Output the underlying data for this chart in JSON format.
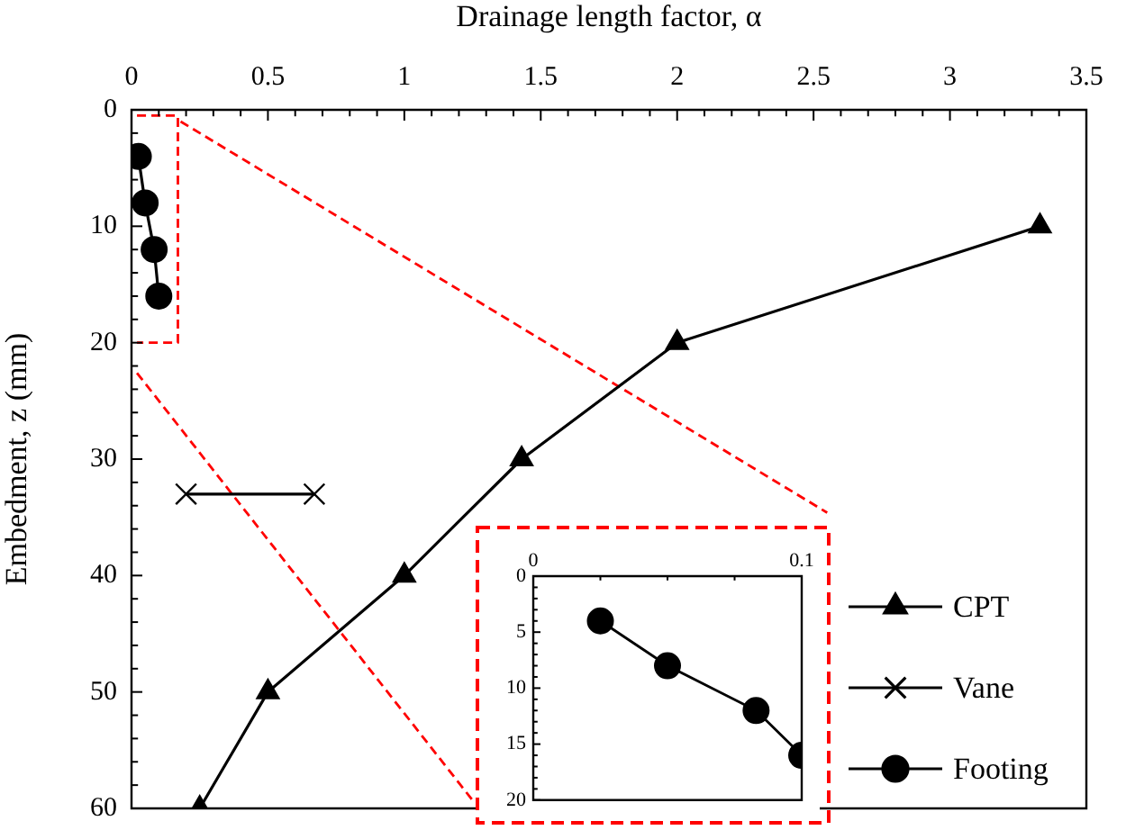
{
  "chart_data": [
    {
      "type": "line",
      "xlabel": "Drainage length factor, α",
      "ylabel": "Embedment, z (mm)",
      "xlim": [
        0,
        3.5
      ],
      "xticks": [
        0,
        0.5,
        1,
        1.5,
        2,
        2.5,
        3,
        3.5,
        {
          "value": 0.1,
          "label": null
        },
        {
          "value": 0.2,
          "label": null
        },
        {
          "value": 0.3,
          "label": null
        },
        {
          "value": 0.4,
          "label": null
        },
        {
          "value": 0.6,
          "label": null
        },
        {
          "value": 0.7,
          "label": null
        },
        {
          "value": 0.8,
          "label": null
        },
        {
          "value": 0.9,
          "label": null
        },
        {
          "value": 1.1,
          "label": null
        },
        {
          "value": 1.2,
          "label": null
        },
        {
          "value": 1.3,
          "label": null
        },
        {
          "value": 1.4,
          "label": null
        },
        {
          "value": 1.6,
          "label": null
        },
        {
          "value": 1.7,
          "label": null
        },
        {
          "value": 1.8,
          "label": null
        },
        {
          "value": 1.9,
          "label": null
        },
        {
          "value": 2.1,
          "label": null
        },
        {
          "value": 2.2,
          "label": null
        },
        {
          "value": 2.3,
          "label": null
        },
        {
          "value": 2.4,
          "label": null
        },
        {
          "value": 2.6,
          "label": null
        },
        {
          "value": 2.7,
          "label": null
        },
        {
          "value": 2.8,
          "label": null
        },
        {
          "value": 2.9,
          "label": null
        },
        {
          "value": 3.1,
          "label": null
        },
        {
          "value": 3.2,
          "label": null
        },
        {
          "value": 3.3,
          "label": null
        },
        {
          "value": 3.4,
          "label": null
        }
      ],
      "ylim": [
        60,
        0
      ],
      "yticks": [
        0,
        10,
        20,
        30,
        40,
        50,
        60,
        {
          "value": 2,
          "label": null
        },
        {
          "value": 4,
          "label": null
        },
        {
          "value": 6,
          "label": null
        },
        {
          "value": 8,
          "label": null
        },
        {
          "value": 12,
          "label": null
        },
        {
          "value": 14,
          "label": null
        },
        {
          "value": 16,
          "label": null
        },
        {
          "value": 18,
          "label": null
        },
        {
          "value": 22,
          "label": null
        },
        {
          "value": 24,
          "label": null
        },
        {
          "value": 26,
          "label": null
        },
        {
          "value": 28,
          "label": null
        },
        {
          "value": 32,
          "label": null
        },
        {
          "value": 34,
          "label": null
        },
        {
          "value": 36,
          "label": null
        },
        {
          "value": 38,
          "label": null
        },
        {
          "value": 42,
          "label": null
        },
        {
          "value": 44,
          "label": null
        },
        {
          "value": 46,
          "label": null
        },
        {
          "value": 48,
          "label": null
        },
        {
          "value": 52,
          "label": null
        },
        {
          "value": 54,
          "label": null
        },
        {
          "value": 56,
          "label": null
        },
        {
          "value": 58,
          "label": null
        }
      ],
      "legend": "bottom right",
      "grid": false,
      "line_style": "solid",
      "series": [
        {
          "name": "CPT",
          "color": "#000000",
          "marker": "triangle",
          "x": [
            3.33,
            2,
            1.43,
            1,
            0.5,
            0.25
          ],
          "values": [
            10,
            20,
            30,
            40,
            50,
            60
          ]
        },
        {
          "name": "Vane",
          "color": "#000000",
          "marker": "cross",
          "x": [
            0.2,
            0.67
          ],
          "values": [
            33,
            33
          ]
        },
        {
          "name": "Footing",
          "color": "#000000",
          "marker": "circle",
          "x": [
            0.025,
            0.05,
            0.083,
            0.1
          ],
          "values": [
            4,
            8,
            12,
            16
          ]
        },
        {
          "color": "#ff0000",
          "marker": "none",
          "line_style": "dashed",
          "x": [
            0.02,
            0.17,
            0.17,
            0.02
          ],
          "values": [
            0.5,
            0.5,
            20,
            20
          ]
        },
        {
          "color": "#ff0000",
          "marker": "none",
          "line_style": "dashed",
          "x": [
            0.18,
            2.55
          ],
          "values": [
            1,
            34.6
          ]
        },
        {
          "color": "#ff0000",
          "marker": "none",
          "line_style": "dashed",
          "x": [
            0.02,
            1.25
          ],
          "values": [
            22.6,
            59.3
          ]
        }
      ]
    },
    {
      "type": "line",
      "xlim": [
        0,
        0.1
      ],
      "xticks": [
        0,
        0.1,
        {
          "value": 0.025,
          "label": null
        },
        {
          "value": 0.05,
          "label": null
        },
        {
          "value": 0.075,
          "label": null
        }
      ],
      "ylim": [
        20,
        0
      ],
      "yticks": [
        0,
        5,
        10,
        15,
        20,
        {
          "value": 1,
          "label": null
        },
        {
          "value": 2,
          "label": null
        },
        {
          "value": 3,
          "label": null
        },
        {
          "value": 4,
          "label": null
        },
        {
          "value": 6,
          "label": null
        },
        {
          "value": 7,
          "label": null
        },
        {
          "value": 8,
          "label": null
        },
        {
          "value": 9,
          "label": null
        },
        {
          "value": 11,
          "label": null
        },
        {
          "value": 12,
          "label": null
        },
        {
          "value": 13,
          "label": null
        },
        {
          "value": 14,
          "label": null
        },
        {
          "value": 16,
          "label": null
        },
        {
          "value": 17,
          "label": null
        },
        {
          "value": 18,
          "label": null
        },
        {
          "value": 19,
          "label": null
        }
      ],
      "legend": false,
      "grid": false,
      "marker": "circle",
      "line_style": "solid",
      "series": [
        {
          "color": "#000000",
          "x": [
            0.025,
            0.05,
            0.083,
            0.1
          ],
          "values": [
            4,
            8,
            12,
            16
          ]
        }
      ]
    }
  ]
}
